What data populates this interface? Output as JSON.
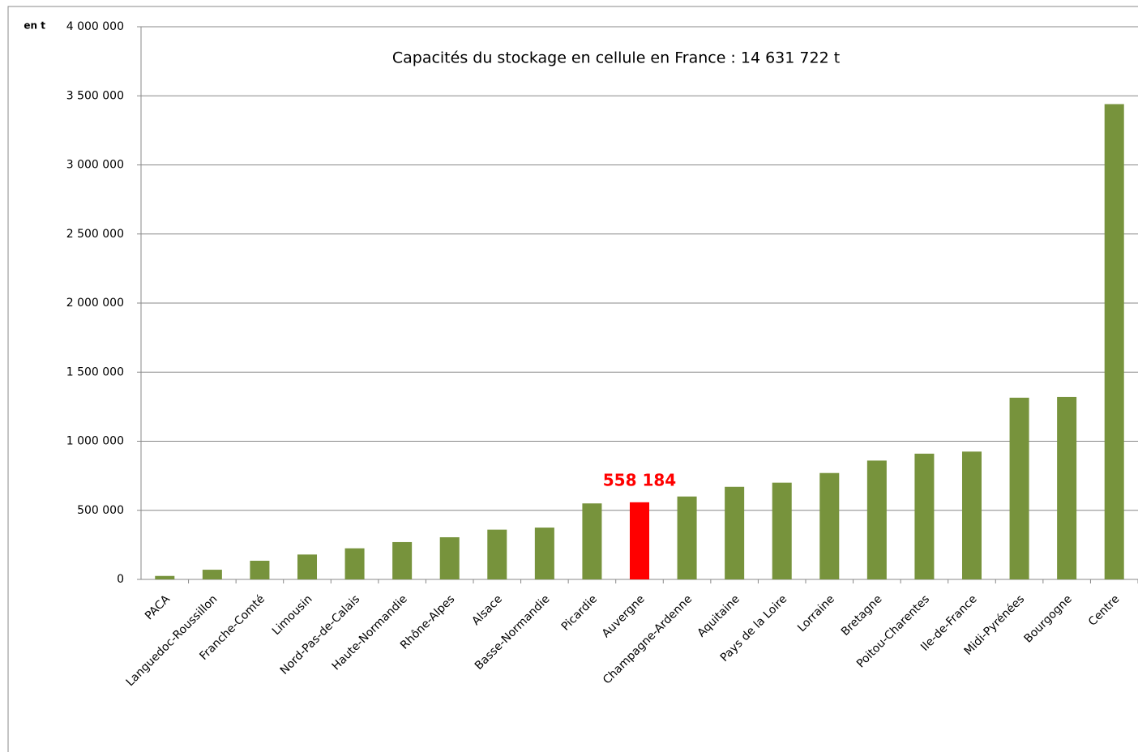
{
  "chart_data": {
    "type": "bar",
    "title": "Capacités du stockage en cellule en France : 14 631 722 t",
    "y_unit": "en t",
    "categories": [
      "PACA",
      "Languedoc-Roussillon",
      "Franche-Comté",
      "Limousin",
      "Nord-Pas-de-Calais",
      "Haute-Normandie",
      "Rhône-Alpes",
      "Alsace",
      "Basse-Normandie",
      "Picardie",
      "Auvergne",
      "Champagne-Ardenne",
      "Aquitaine",
      "Pays de la Loire",
      "Lorraine",
      "Bretagne",
      "Poitou-Charentes",
      "Ile-de-France",
      "Midi-Pyrénées",
      "Bourgogne",
      "Centre"
    ],
    "values": [
      25000,
      70000,
      135000,
      180000,
      225000,
      270000,
      305000,
      360000,
      375000,
      550000,
      558184,
      600000,
      670000,
      700000,
      770000,
      860000,
      910000,
      925000,
      1315000,
      1320000,
      3440000
    ],
    "value_labels": [
      null,
      null,
      null,
      null,
      null,
      null,
      null,
      null,
      null,
      null,
      "558 184",
      null,
      null,
      null,
      null,
      null,
      null,
      null,
      null,
      null,
      null
    ],
    "colors": [
      "#77933c",
      "#77933c",
      "#77933c",
      "#77933c",
      "#77933c",
      "#77933c",
      "#77933c",
      "#77933c",
      "#77933c",
      "#77933c",
      "#ff0000",
      "#77933c",
      "#77933c",
      "#77933c",
      "#77933c",
      "#77933c",
      "#77933c",
      "#77933c",
      "#77933c",
      "#77933c",
      "#77933c"
    ],
    "ylim": [
      0,
      4000000
    ],
    "yticks": [
      0,
      {
        "value": 500000,
        "label": "500 000"
      },
      {
        "value": 1000000,
        "label": "1 000 000"
      },
      {
        "value": 1500000,
        "label": "1 500 000"
      },
      {
        "value": 2000000,
        "label": "2 000 000"
      },
      {
        "value": 2500000,
        "label": "2 500 000"
      },
      {
        "value": 3000000,
        "label": "3 000 000"
      },
      {
        "value": 3500000,
        "label": "3 500 000"
      },
      {
        "value": 4000000,
        "label": "4 000 000"
      }
    ],
    "grid": true
  }
}
